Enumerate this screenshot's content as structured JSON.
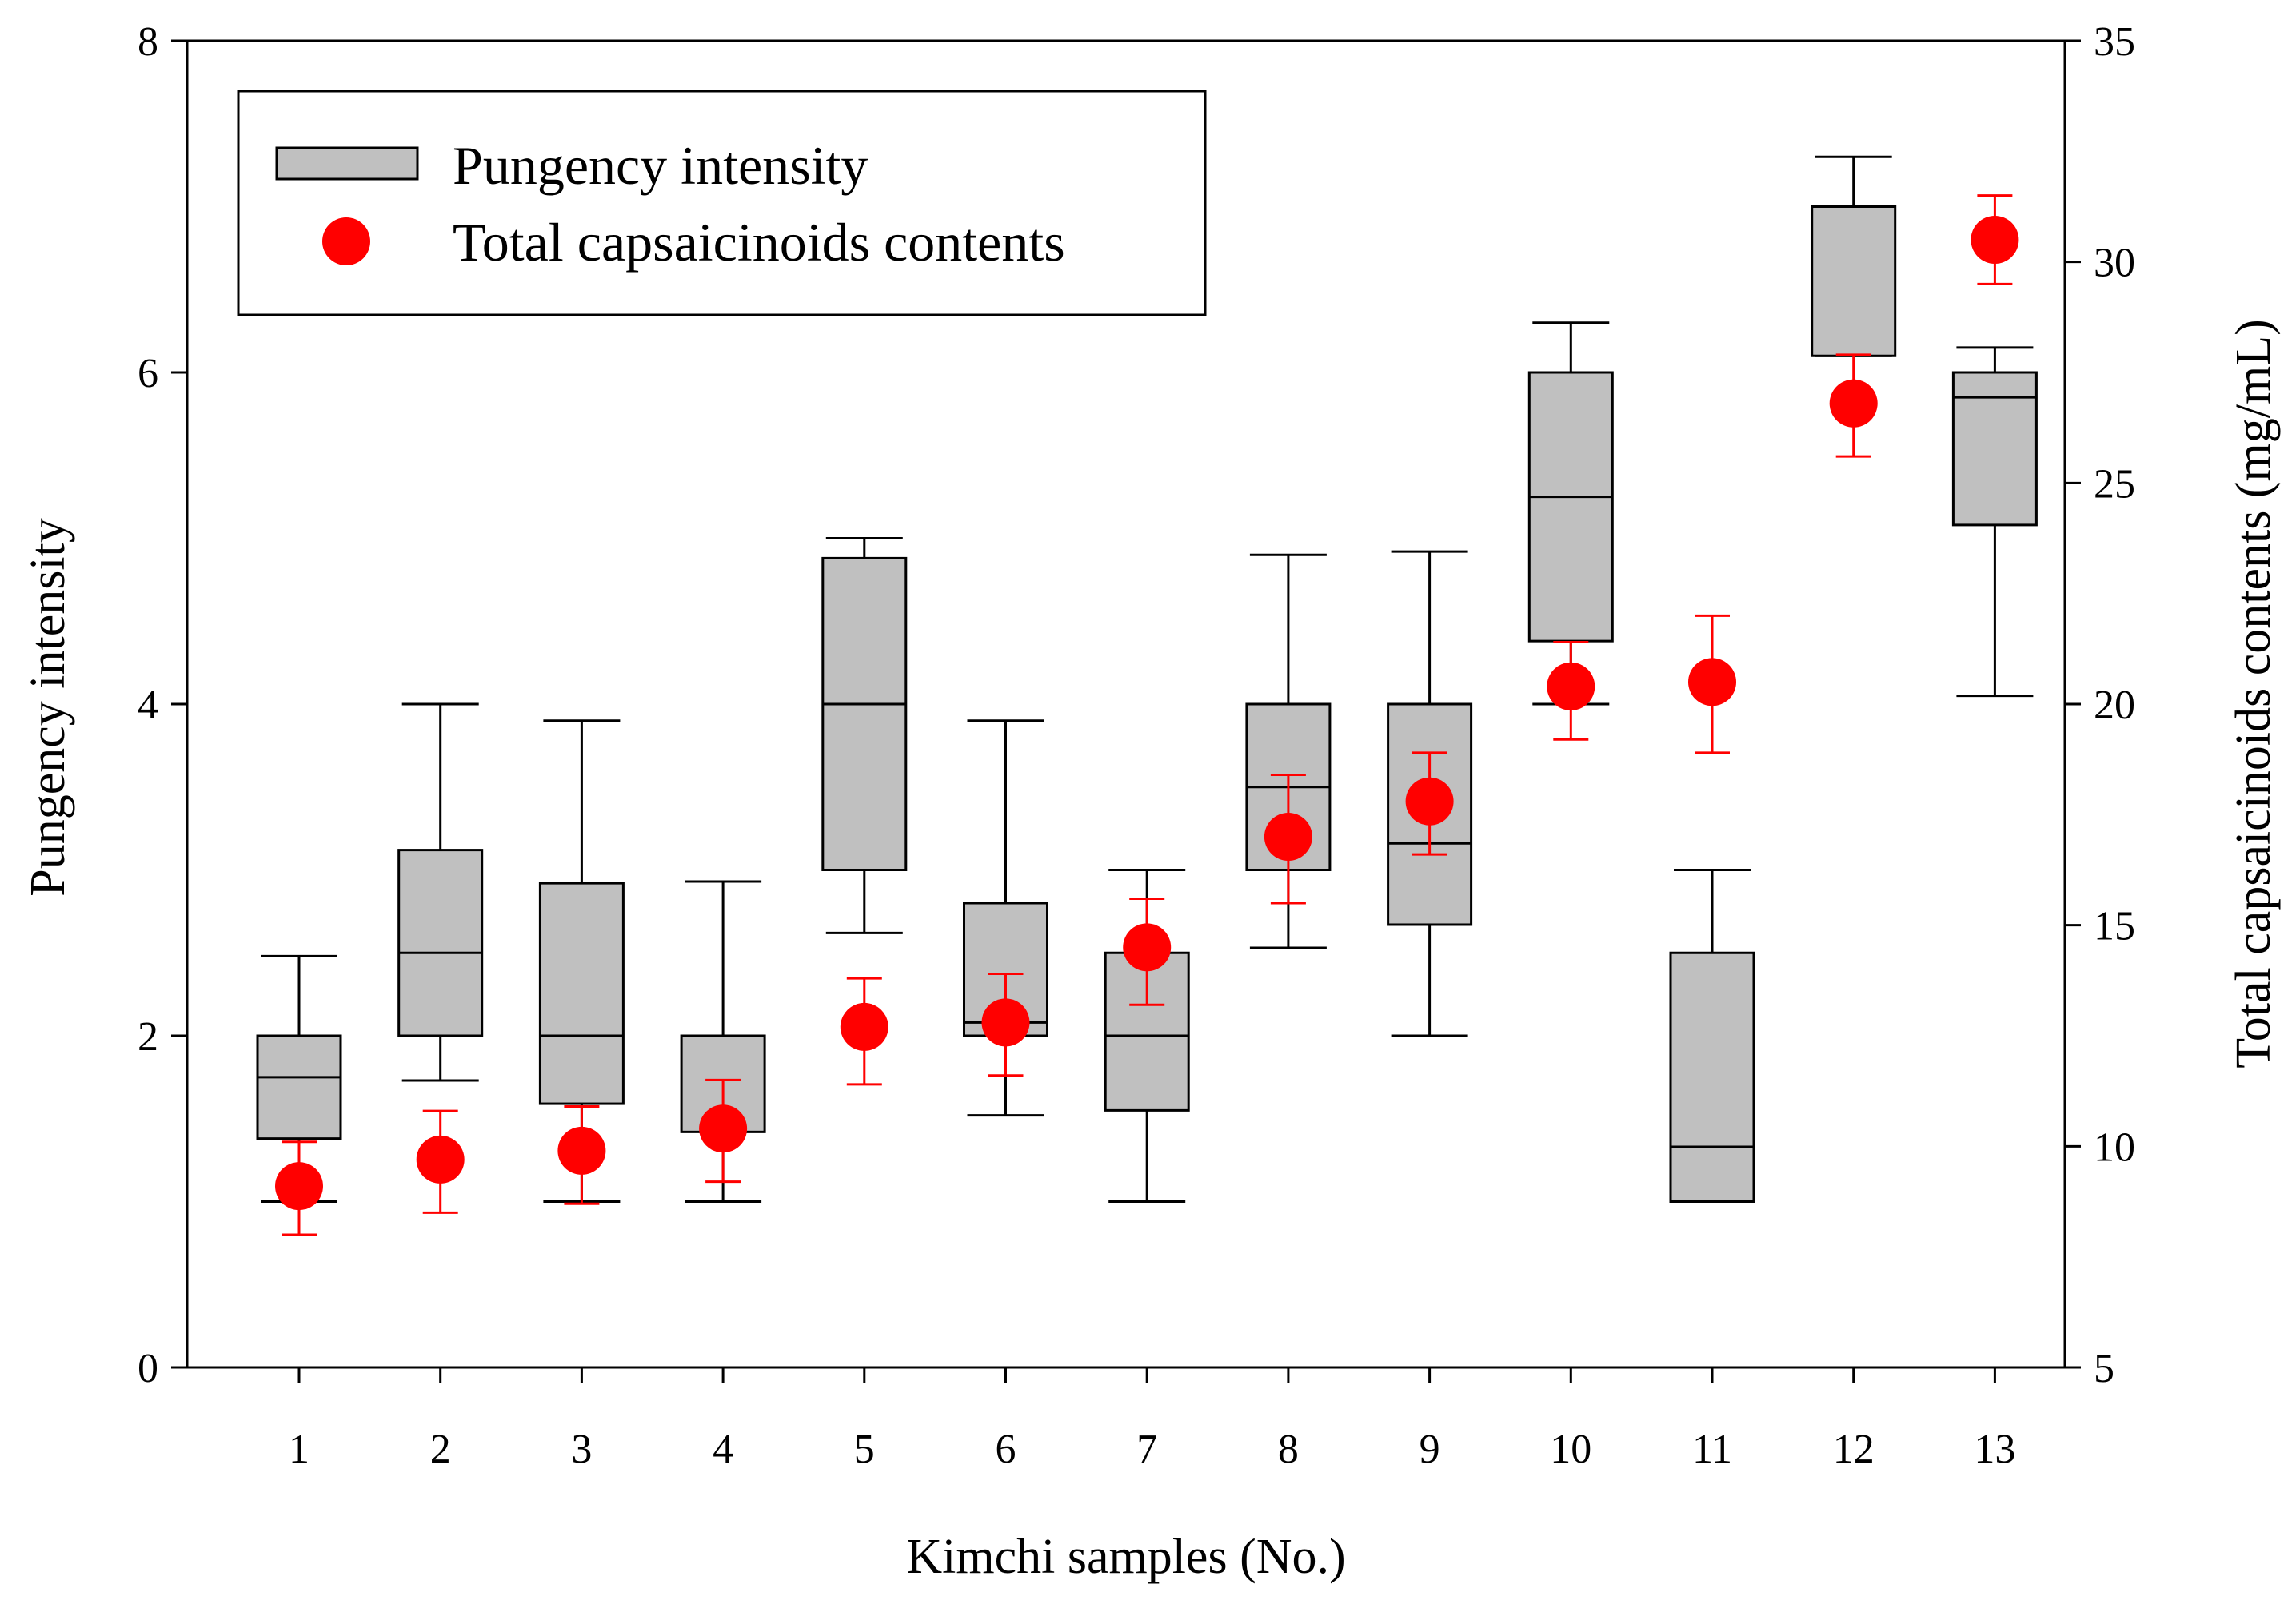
{
  "chart_data": {
    "type": "box+scatter",
    "xlabel": "Kimchi samples (No.)",
    "ylabel": "Pungency intensity",
    "y2label": "Total capsaicinoids contents (mg/mL)",
    "ylim": [
      0,
      8
    ],
    "y2lim": [
      5,
      35
    ],
    "yticks": [
      "0",
      "2",
      "4",
      "6",
      "8"
    ],
    "y2ticks": [
      "5",
      "10",
      "15",
      "20",
      "25",
      "30",
      "35"
    ],
    "categories": [
      "1",
      "2",
      "3",
      "4",
      "5",
      "6",
      "7",
      "8",
      "9",
      "10",
      "11",
      "12",
      "13"
    ],
    "legend": {
      "position": "top-left",
      "box_label": "Pungency intensity",
      "marker_label": "Total capsaicinoids contents"
    },
    "colors": {
      "box_fill": "#c0c0c0",
      "marker": "#ff0000",
      "error_bar": "#ff0000",
      "axis": "#000000"
    },
    "series": [
      {
        "name": "Pungency intensity",
        "kind": "box",
        "axis": "left",
        "boxes": [
          {
            "min": 1.0,
            "q1": 1.38,
            "median": 1.75,
            "q3": 2.0,
            "max": 2.48
          },
          {
            "min": 1.73,
            "q1": 2.0,
            "median": 2.5,
            "q3": 3.12,
            "max": 4.0
          },
          {
            "min": 1.0,
            "q1": 1.59,
            "median": 2.0,
            "q3": 2.92,
            "max": 3.9
          },
          {
            "min": 1.0,
            "q1": 1.42,
            "median": 2.0,
            "q3": 2.0,
            "max": 2.93
          },
          {
            "min": 2.62,
            "q1": 3.0,
            "median": 4.0,
            "q3": 4.88,
            "max": 5.0
          },
          {
            "min": 1.52,
            "q1": 2.0,
            "median": 2.08,
            "q3": 2.8,
            "max": 3.9
          },
          {
            "min": 1.0,
            "q1": 1.55,
            "median": 2.0,
            "q3": 2.5,
            "max": 3.0
          },
          {
            "min": 2.53,
            "q1": 3.0,
            "median": 3.5,
            "q3": 4.0,
            "max": 4.9
          },
          {
            "min": 2.0,
            "q1": 2.67,
            "median": 3.16,
            "q3": 4.0,
            "max": 4.92
          },
          {
            "min": 4.0,
            "q1": 4.38,
            "median": 5.25,
            "q3": 6.0,
            "max": 6.3
          },
          {
            "min": 1.0,
            "q1": 1.0,
            "median": 1.33,
            "q3": 2.5,
            "max": 3.0
          },
          {
            "min": 6.1,
            "q1": 6.1,
            "median": 7.0,
            "q3": 7.0,
            "max": 7.3
          },
          {
            "min": 4.05,
            "q1": 5.08,
            "median": 5.85,
            "q3": 6.0,
            "max": 6.15
          }
        ]
      },
      {
        "name": "Total capsaicinoids contents",
        "kind": "scatter",
        "axis": "right",
        "values": [
          9.1,
          9.7,
          9.9,
          10.4,
          12.7,
          12.8,
          14.5,
          17.0,
          17.8,
          20.4,
          20.5,
          26.8,
          30.5
        ],
        "err_low": [
          8.0,
          8.5,
          8.7,
          9.2,
          11.4,
          11.6,
          13.2,
          15.5,
          16.6,
          19.2,
          18.9,
          25.6,
          29.5
        ],
        "err_high": [
          10.1,
          10.8,
          10.9,
          11.5,
          13.8,
          13.9,
          15.6,
          18.4,
          18.9,
          21.4,
          22.0,
          27.9,
          31.5
        ]
      }
    ]
  }
}
